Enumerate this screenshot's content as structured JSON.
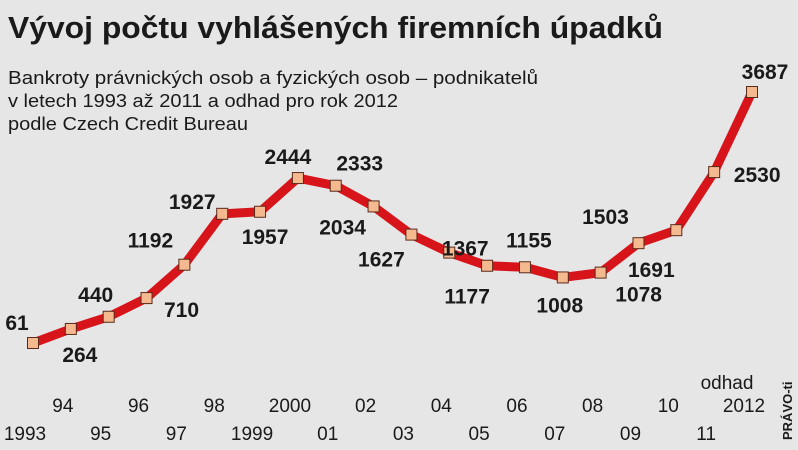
{
  "chart_data": {
    "type": "line",
    "title": "Vývoj počtu vyhlášených firemních úpadků",
    "subtitle": [
      "Bankroty právnických osob a fyzických osob – podnikatelů",
      "v letech 1993 až 2011 a odhad pro rok 2012",
      "podle Czech Credit Bureau"
    ],
    "categories": [
      "1993",
      "94",
      "95",
      "96",
      "97",
      "98",
      "1999",
      "2000",
      "01",
      "02",
      "03",
      "04",
      "05",
      "06",
      "07",
      "08",
      "09",
      "10",
      "11",
      "2012"
    ],
    "estimate_label": "odhad",
    "series": [
      {
        "name": "Bankroty",
        "color": "#d7141a",
        "values": [
          61,
          264,
          440,
          710,
          1192,
          1927,
          1957,
          2444,
          2333,
          2034,
          1627,
          1367,
          1177,
          1155,
          1008,
          1078,
          1503,
          1691,
          2530,
          3687
        ]
      }
    ],
    "source": "PRÁVO-ti"
  }
}
